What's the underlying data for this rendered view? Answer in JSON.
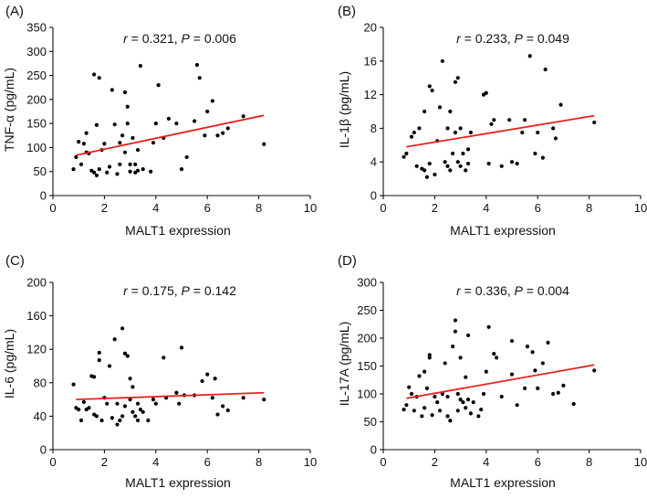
{
  "chart_data": [
    {
      "panel": "(A)",
      "type": "scatter",
      "stat_r_prefix": "r",
      "stat_r_value": " = 0.321, ",
      "stat_p_prefix": "P",
      "stat_p_value": " = 0.006",
      "xlabel": "MALT1 expression",
      "ylabel": "TNF-α (pg/mL)",
      "xlim": [
        0,
        10
      ],
      "ylim": [
        0,
        350
      ],
      "xticks": [
        0,
        2,
        4,
        6,
        8,
        10
      ],
      "yticks": [
        0,
        50,
        100,
        150,
        200,
        250,
        300,
        350
      ],
      "fit": {
        "x1": 0.9,
        "y1": 84,
        "x2": 8.2,
        "y2": 167,
        "color": "#e8201c"
      },
      "points": [
        [
          0.8,
          55
        ],
        [
          0.9,
          80
        ],
        [
          1.0,
          112
        ],
        [
          1.1,
          65
        ],
        [
          1.2,
          108
        ],
        [
          1.3,
          90
        ],
        [
          1.3,
          130
        ],
        [
          1.4,
          88
        ],
        [
          1.5,
          52
        ],
        [
          1.6,
          48
        ],
        [
          1.6,
          252
        ],
        [
          1.7,
          42
        ],
        [
          1.7,
          147
        ],
        [
          1.8,
          55
        ],
        [
          1.8,
          245
        ],
        [
          1.9,
          95
        ],
        [
          2.0,
          108
        ],
        [
          2.1,
          48
        ],
        [
          2.2,
          60
        ],
        [
          2.3,
          220
        ],
        [
          2.4,
          148
        ],
        [
          2.5,
          45
        ],
        [
          2.6,
          65
        ],
        [
          2.6,
          110
        ],
        [
          2.7,
          125
        ],
        [
          2.8,
          90
        ],
        [
          2.8,
          215
        ],
        [
          2.9,
          150
        ],
        [
          2.9,
          185
        ],
        [
          3.0,
          50
        ],
        [
          3.0,
          65
        ],
        [
          3.1,
          120
        ],
        [
          3.2,
          48
        ],
        [
          3.2,
          65
        ],
        [
          3.3,
          52
        ],
        [
          3.3,
          95
        ],
        [
          3.4,
          270
        ],
        [
          3.5,
          55
        ],
        [
          3.8,
          50
        ],
        [
          3.9,
          110
        ],
        [
          4.0,
          150
        ],
        [
          4.1,
          230
        ],
        [
          4.3,
          120
        ],
        [
          4.5,
          160
        ],
        [
          4.8,
          150
        ],
        [
          5.0,
          55
        ],
        [
          5.2,
          80
        ],
        [
          5.5,
          155
        ],
        [
          5.6,
          272
        ],
        [
          5.7,
          245
        ],
        [
          5.9,
          125
        ],
        [
          6.0,
          175
        ],
        [
          6.2,
          197
        ],
        [
          6.4,
          125
        ],
        [
          6.6,
          130
        ],
        [
          6.8,
          140
        ],
        [
          7.4,
          165
        ],
        [
          8.2,
          107
        ]
      ]
    },
    {
      "panel": "(B)",
      "type": "scatter",
      "stat_r_prefix": "r",
      "stat_r_value": " = 0.233, ",
      "stat_p_prefix": "P",
      "stat_p_value": " = 0.049",
      "xlabel": "MALT1 expression",
      "ylabel": "IL-1β (pg/mL)",
      "xlim": [
        0,
        10
      ],
      "ylim": [
        0,
        20
      ],
      "xticks": [
        0,
        2,
        4,
        6,
        8,
        10
      ],
      "yticks": [
        0,
        4,
        8,
        12,
        16,
        20
      ],
      "fit": {
        "x1": 0.9,
        "y1": 5.8,
        "x2": 8.2,
        "y2": 9.5,
        "color": "#e8201c"
      },
      "points": [
        [
          0.8,
          4.6
        ],
        [
          0.9,
          5.0
        ],
        [
          1.1,
          7.0
        ],
        [
          1.2,
          7.5
        ],
        [
          1.3,
          3.5
        ],
        [
          1.4,
          8.0
        ],
        [
          1.5,
          3.2
        ],
        [
          1.6,
          10.0
        ],
        [
          1.6,
          3.0
        ],
        [
          1.7,
          2.2
        ],
        [
          1.8,
          13.0
        ],
        [
          1.8,
          3.8
        ],
        [
          1.9,
          12.5
        ],
        [
          2.0,
          2.5
        ],
        [
          2.1,
          6.5
        ],
        [
          2.2,
          10.5
        ],
        [
          2.3,
          16.0
        ],
        [
          2.4,
          4.0
        ],
        [
          2.5,
          8.0
        ],
        [
          2.5,
          3.5
        ],
        [
          2.6,
          10.0
        ],
        [
          2.6,
          3.0
        ],
        [
          2.7,
          5.0
        ],
        [
          2.8,
          7.5
        ],
        [
          2.8,
          13.5
        ],
        [
          2.9,
          14.0
        ],
        [
          2.9,
          4.0
        ],
        [
          3.0,
          3.5
        ],
        [
          3.0,
          8.0
        ],
        [
          3.1,
          5.0
        ],
        [
          3.2,
          3.0
        ],
        [
          3.3,
          5.5
        ],
        [
          3.3,
          3.8
        ],
        [
          3.4,
          7.5
        ],
        [
          3.9,
          12.0
        ],
        [
          4.0,
          12.2
        ],
        [
          4.1,
          3.8
        ],
        [
          4.2,
          8.5
        ],
        [
          4.3,
          9.0
        ],
        [
          4.6,
          3.5
        ],
        [
          4.9,
          9.0
        ],
        [
          5.0,
          4.0
        ],
        [
          5.2,
          3.8
        ],
        [
          5.4,
          7.5
        ],
        [
          5.5,
          9.0
        ],
        [
          5.7,
          16.6
        ],
        [
          5.9,
          5.0
        ],
        [
          6.0,
          7.5
        ],
        [
          6.2,
          4.5
        ],
        [
          6.3,
          15.0
        ],
        [
          6.6,
          8.0
        ],
        [
          6.7,
          6.8
        ],
        [
          6.9,
          10.8
        ],
        [
          8.2,
          8.7
        ]
      ]
    },
    {
      "panel": "(C)",
      "type": "scatter",
      "stat_r_prefix": "r",
      "stat_r_value": " = 0.175, ",
      "stat_p_prefix": "P",
      "stat_p_value": " = 0.142",
      "xlabel": "MALT1 expression",
      "ylabel": "IL-6 (pg/mL)",
      "xlim": [
        0,
        10
      ],
      "ylim": [
        0,
        200
      ],
      "xticks": [
        0,
        2,
        4,
        6,
        8,
        10
      ],
      "yticks": [
        0,
        40,
        80,
        120,
        160,
        200
      ],
      "fit": {
        "x1": 0.9,
        "y1": 60,
        "x2": 8.2,
        "y2": 68,
        "color": "#e8201c"
      },
      "points": [
        [
          0.8,
          78
        ],
        [
          0.9,
          50
        ],
        [
          1.0,
          48
        ],
        [
          1.1,
          35
        ],
        [
          1.2,
          57
        ],
        [
          1.3,
          48
        ],
        [
          1.4,
          50
        ],
        [
          1.5,
          88
        ],
        [
          1.6,
          42
        ],
        [
          1.6,
          87
        ],
        [
          1.7,
          40
        ],
        [
          1.8,
          107
        ],
        [
          1.8,
          116
        ],
        [
          1.9,
          35
        ],
        [
          2.0,
          62
        ],
        [
          2.1,
          55
        ],
        [
          2.2,
          100
        ],
        [
          2.3,
          38
        ],
        [
          2.4,
          132
        ],
        [
          2.5,
          30
        ],
        [
          2.5,
          55
        ],
        [
          2.6,
          35
        ],
        [
          2.7,
          145
        ],
        [
          2.7,
          40
        ],
        [
          2.8,
          52
        ],
        [
          2.8,
          115
        ],
        [
          2.9,
          112
        ],
        [
          3.0,
          60
        ],
        [
          3.0,
          85
        ],
        [
          3.1,
          45
        ],
        [
          3.1,
          75
        ],
        [
          3.2,
          40
        ],
        [
          3.3,
          55
        ],
        [
          3.3,
          35
        ],
        [
          3.4,
          48
        ],
        [
          3.5,
          45
        ],
        [
          3.7,
          35
        ],
        [
          3.9,
          60
        ],
        [
          4.0,
          55
        ],
        [
          4.3,
          110
        ],
        [
          4.4,
          62
        ],
        [
          4.8,
          68
        ],
        [
          4.9,
          55
        ],
        [
          5.0,
          122
        ],
        [
          5.1,
          65
        ],
        [
          5.5,
          65
        ],
        [
          5.8,
          82
        ],
        [
          6.0,
          90
        ],
        [
          6.2,
          62
        ],
        [
          6.3,
          85
        ],
        [
          6.4,
          42
        ],
        [
          6.6,
          52
        ],
        [
          6.8,
          47
        ],
        [
          7.4,
          62
        ],
        [
          8.2,
          60
        ]
      ]
    },
    {
      "panel": "(D)",
      "type": "scatter",
      "stat_r_prefix": "r",
      "stat_r_value": " = 0.336, ",
      "stat_p_prefix": "P",
      "stat_p_value": " = 0.004",
      "xlabel": "MALT1 expression",
      "ylabel": "IL-17A (pg/mL)",
      "xlim": [
        0,
        10
      ],
      "ylim": [
        0,
        300
      ],
      "xticks": [
        0,
        2,
        4,
        6,
        8,
        10
      ],
      "yticks": [
        0,
        50,
        100,
        150,
        200,
        250,
        300
      ],
      "fit": {
        "x1": 0.9,
        "y1": 92,
        "x2": 8.2,
        "y2": 152,
        "color": "#e8201c"
      },
      "points": [
        [
          0.8,
          72
        ],
        [
          0.9,
          80
        ],
        [
          1.0,
          112
        ],
        [
          1.1,
          100
        ],
        [
          1.2,
          70
        ],
        [
          1.3,
          95
        ],
        [
          1.4,
          132
        ],
        [
          1.5,
          60
        ],
        [
          1.6,
          140
        ],
        [
          1.6,
          75
        ],
        [
          1.7,
          110
        ],
        [
          1.8,
          165
        ],
        [
          1.8,
          170
        ],
        [
          1.9,
          62
        ],
        [
          2.0,
          95
        ],
        [
          2.1,
          85
        ],
        [
          2.2,
          70
        ],
        [
          2.3,
          100
        ],
        [
          2.4,
          155
        ],
        [
          2.5,
          60
        ],
        [
          2.5,
          95
        ],
        [
          2.6,
          52
        ],
        [
          2.7,
          185
        ],
        [
          2.8,
          212
        ],
        [
          2.8,
          232
        ],
        [
          2.9,
          70
        ],
        [
          2.9,
          100
        ],
        [
          3.0,
          90
        ],
        [
          3.0,
          165
        ],
        [
          3.1,
          85
        ],
        [
          3.2,
          75
        ],
        [
          3.2,
          130
        ],
        [
          3.3,
          205
        ],
        [
          3.3,
          90
        ],
        [
          3.4,
          65
        ],
        [
          3.5,
          85
        ],
        [
          3.7,
          60
        ],
        [
          3.8,
          72
        ],
        [
          3.9,
          100
        ],
        [
          4.0,
          140
        ],
        [
          4.1,
          220
        ],
        [
          4.3,
          172
        ],
        [
          4.4,
          165
        ],
        [
          4.6,
          95
        ],
        [
          5.0,
          195
        ],
        [
          5.0,
          135
        ],
        [
          5.2,
          80
        ],
        [
          5.5,
          110
        ],
        [
          5.6,
          185
        ],
        [
          5.8,
          175
        ],
        [
          5.9,
          142
        ],
        [
          6.0,
          110
        ],
        [
          6.2,
          155
        ],
        [
          6.4,
          192
        ],
        [
          6.6,
          100
        ],
        [
          6.8,
          102
        ],
        [
          7.0,
          115
        ],
        [
          7.4,
          82
        ],
        [
          8.2,
          142
        ]
      ]
    }
  ]
}
